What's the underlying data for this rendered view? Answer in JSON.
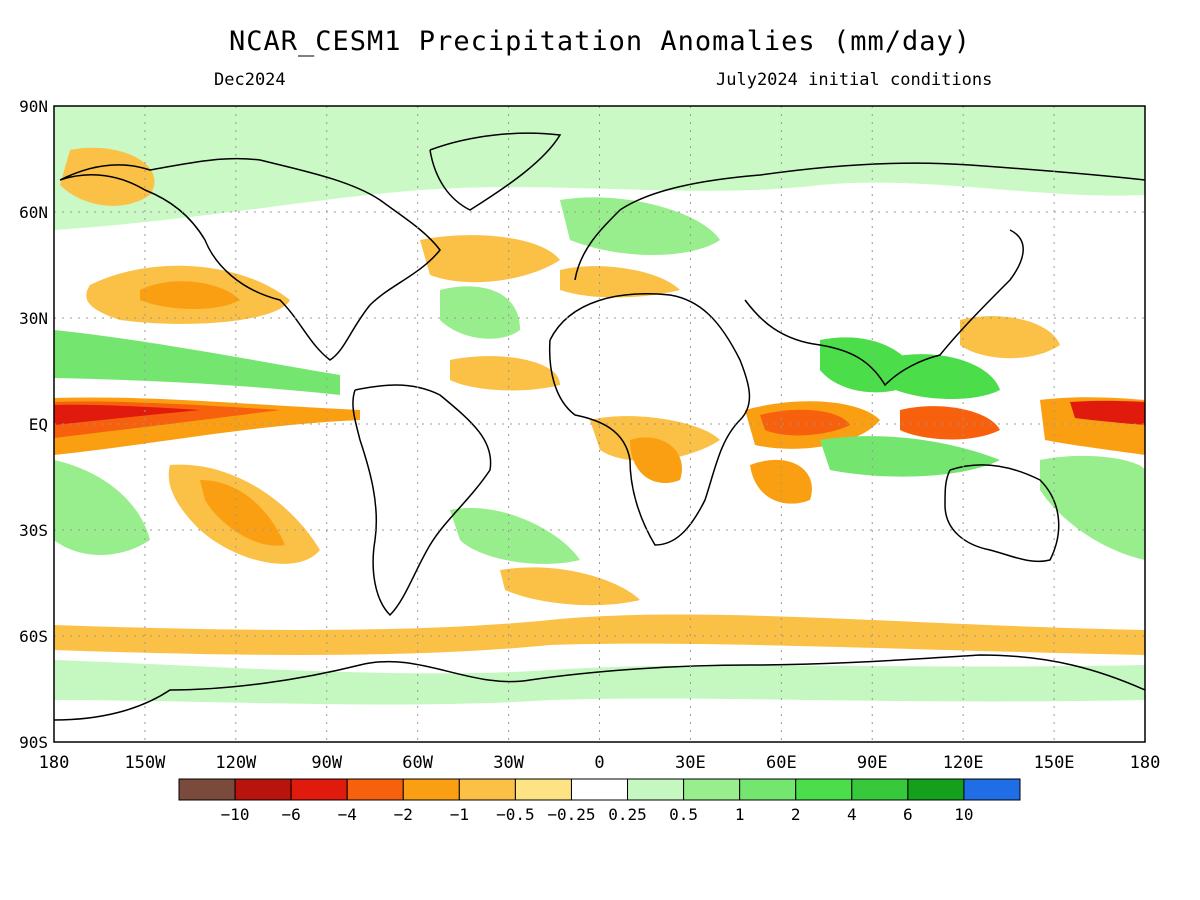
{
  "title": "NCAR_CESM1 Precipitation Anomalies (mm/day)",
  "subtitle_left": "Dec2024",
  "subtitle_right": "July2024 initial conditions",
  "map": {
    "lon_ticks": [
      "180",
      "150W",
      "120W",
      "90W",
      "60W",
      "30W",
      "0",
      "30E",
      "60E",
      "90E",
      "120E",
      "150E",
      "180"
    ],
    "lat_ticks": [
      "90N",
      "60N",
      "30N",
      "EQ",
      "30S",
      "60S",
      "90S"
    ]
  },
  "legend": {
    "colors": [
      "#7a4a3c",
      "#b8130d",
      "#e01a0c",
      "#f7600c",
      "#fb9f12",
      "#fbc046",
      "#fde383",
      "#ffffff",
      "#c4f8c0",
      "#98ee8c",
      "#74e670",
      "#4cdd4a",
      "#38c83c",
      "#14a01c",
      "#1f6ee6"
    ],
    "labels": [
      "-10",
      "-6",
      "-4",
      "-2",
      "-1",
      "-0.5",
      "-0.25",
      "0.25",
      "0.5",
      "1",
      "2",
      "4",
      "6",
      "10"
    ]
  }
}
